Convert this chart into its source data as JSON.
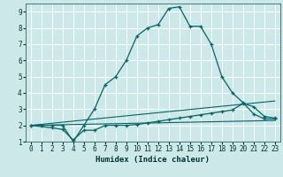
{
  "xlabel": "Humidex (Indice chaleur)",
  "background_color": "#cce8e8",
  "grid_color": "#ffffff",
  "line_color": "#006666",
  "xlim": [
    -0.5,
    23.5
  ],
  "ylim": [
    1,
    9.5
  ],
  "xticks": [
    0,
    1,
    2,
    3,
    4,
    5,
    6,
    7,
    8,
    9,
    10,
    11,
    12,
    13,
    14,
    15,
    16,
    17,
    18,
    19,
    20,
    21,
    22,
    23
  ],
  "yticks": [
    1,
    2,
    3,
    4,
    5,
    6,
    7,
    8,
    9
  ],
  "line1_x": [
    0,
    1,
    2,
    3,
    4,
    5,
    6,
    7,
    8,
    9,
    10,
    11,
    12,
    13,
    14,
    15,
    16,
    17,
    18,
    19,
    20,
    21,
    22,
    23
  ],
  "line1_y": [
    2,
    2,
    2,
    2,
    1,
    2,
    3,
    4.5,
    5,
    6,
    7.5,
    8,
    8.2,
    9.2,
    9.3,
    8.1,
    8.1,
    7,
    5,
    4,
    3.4,
    2.7,
    2.4,
    2.4
  ],
  "line2_x": [
    0,
    2,
    3,
    4,
    5,
    6,
    7,
    8,
    9,
    10,
    11,
    12,
    13,
    14,
    15,
    16,
    17,
    18,
    19,
    20,
    21,
    22,
    23
  ],
  "line2_y": [
    2,
    1.85,
    1.75,
    1.1,
    1.7,
    1.7,
    2,
    2,
    2,
    2.05,
    2.15,
    2.25,
    2.35,
    2.45,
    2.55,
    2.65,
    2.75,
    2.85,
    2.95,
    3.35,
    3.15,
    2.55,
    2.45
  ],
  "line3_x": [
    0,
    23
  ],
  "line3_y": [
    2,
    2.3
  ],
  "line4_x": [
    0,
    23
  ],
  "line4_y": [
    2,
    3.5
  ]
}
